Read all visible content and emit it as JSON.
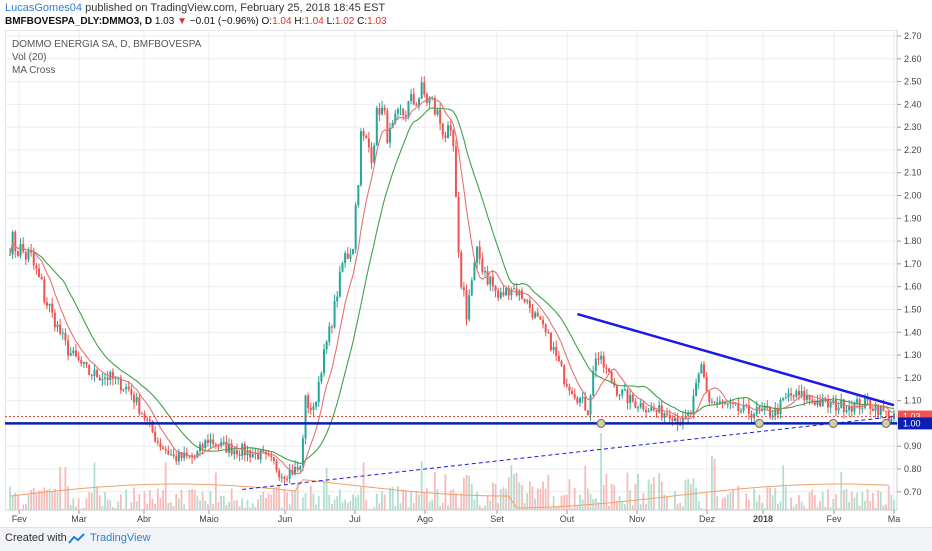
{
  "header": {
    "username": "LucasGomes04",
    "published_text": "published on TradingView.com, February 25, 2018 18:45 EST",
    "symbol": "BMFBOVESPA_DLY:DMMO3, D",
    "last": "1.03",
    "change": "−0.01 (−0.96%)",
    "o_label": "O:",
    "o_value": "1.04",
    "h_label": "H:",
    "h_value": "1.04",
    "l_label": "L:",
    "l_value": "1.02",
    "c_label": "C:",
    "c_value": "1.03"
  },
  "legend": {
    "title": "DOMMO ENERGIA SA, D, BMFBOVESPA",
    "vol": "Vol (20)",
    "ma": "MA Cross"
  },
  "footer": {
    "created_with": "Created with",
    "brand": "TradingView"
  },
  "colors": {
    "up": "#26a69a",
    "down": "#ef5350",
    "ma_fast": "#e57373",
    "ma_slow": "#43a047",
    "trend": "#1a1ae6",
    "support": "#0b1fb3",
    "dotted": "#e53935",
    "grid": "#e9edf2"
  },
  "chart_data": {
    "type": "candlestick",
    "title": "DOMMO ENERGIA SA, D, BMFBOVESPA",
    "ylim": [
      0.62,
      2.7
    ],
    "y_ticks": [
      "0.70",
      "0.80",
      "0.90",
      "1.00",
      "1.10",
      "1.20",
      "1.30",
      "1.40",
      "1.50",
      "1.60",
      "1.70",
      "1.80",
      "1.90",
      "2.00",
      "2.10",
      "2.20",
      "2.30",
      "2.40",
      "2.50",
      "2.60",
      "2.70"
    ],
    "x_ticks": [
      "Fev",
      "Mar",
      "Abr",
      "Maio",
      "Jun",
      "Jul",
      "Ago",
      "Set",
      "Out",
      "Nov",
      "Dez",
      "2018",
      "Fev",
      "Ma"
    ],
    "price_labels": [
      {
        "text": "1.03",
        "value": 1.03,
        "color": "#ef5350"
      },
      {
        "text": "1.00",
        "value": 1.0,
        "color": "#0b1fb3"
      }
    ],
    "anchors": [
      [
        0,
        1.8
      ],
      [
        8,
        1.72
      ],
      [
        15,
        1.5
      ],
      [
        22,
        1.32
      ],
      [
        30,
        1.22
      ],
      [
        38,
        1.2
      ],
      [
        45,
        1.15
      ],
      [
        50,
        1.05
      ],
      [
        56,
        0.92
      ],
      [
        62,
        0.85
      ],
      [
        70,
        0.85
      ],
      [
        75,
        0.93
      ],
      [
        80,
        0.9
      ],
      [
        88,
        0.88
      ],
      [
        95,
        0.86
      ],
      [
        100,
        0.82
      ],
      [
        103,
        0.78
      ],
      [
        110,
        0.8
      ],
      [
        112,
        1.1
      ],
      [
        115,
        1.05
      ],
      [
        118,
        1.25
      ],
      [
        122,
        1.45
      ],
      [
        126,
        1.7
      ],
      [
        130,
        1.8
      ],
      [
        133,
        2.25
      ],
      [
        137,
        2.2
      ],
      [
        140,
        2.4
      ],
      [
        144,
        2.25
      ],
      [
        148,
        2.35
      ],
      [
        152,
        2.4
      ],
      [
        156,
        2.45
      ],
      [
        160,
        2.4
      ],
      [
        164,
        2.3
      ],
      [
        168,
        2.2
      ],
      [
        170,
        1.7
      ],
      [
        173,
        1.5
      ],
      [
        177,
        1.75
      ],
      [
        181,
        1.65
      ],
      [
        185,
        1.55
      ],
      [
        190,
        1.6
      ],
      [
        195,
        1.55
      ],
      [
        200,
        1.45
      ],
      [
        205,
        1.35
      ],
      [
        210,
        1.2
      ],
      [
        215,
        1.12
      ],
      [
        219,
        1.06
      ],
      [
        222,
        1.3
      ],
      [
        225,
        1.25
      ],
      [
        230,
        1.15
      ],
      [
        235,
        1.1
      ],
      [
        240,
        1.08
      ],
      [
        245,
        1.05
      ],
      [
        250,
        1.05
      ],
      [
        255,
        1.0
      ],
      [
        258,
        1.05
      ],
      [
        262,
        1.25
      ],
      [
        265,
        1.1
      ],
      [
        270,
        1.08
      ],
      [
        275,
        1.06
      ],
      [
        280,
        1.05
      ],
      [
        285,
        1.05
      ],
      [
        290,
        1.05
      ],
      [
        295,
        1.12
      ],
      [
        300,
        1.12
      ],
      [
        305,
        1.1
      ],
      [
        310,
        1.08
      ],
      [
        315,
        1.08
      ],
      [
        320,
        1.08
      ],
      [
        325,
        1.09
      ],
      [
        330,
        1.06
      ],
      [
        333,
        1.03
      ]
    ],
    "volume_max_label": "relative",
    "annotation_circles": [
      1.0,
      1.0,
      1.0,
      1.0
    ],
    "trendlines": [
      {
        "name": "descending resistance",
        "from": [
          215,
          1.48
        ],
        "to": [
          335,
          1.08
        ]
      },
      {
        "name": "ascending support (dashed)",
        "from": [
          88,
          0.71
        ],
        "to": [
          335,
          1.03
        ]
      },
      {
        "name": "horizontal support",
        "value": 1.0
      }
    ]
  }
}
